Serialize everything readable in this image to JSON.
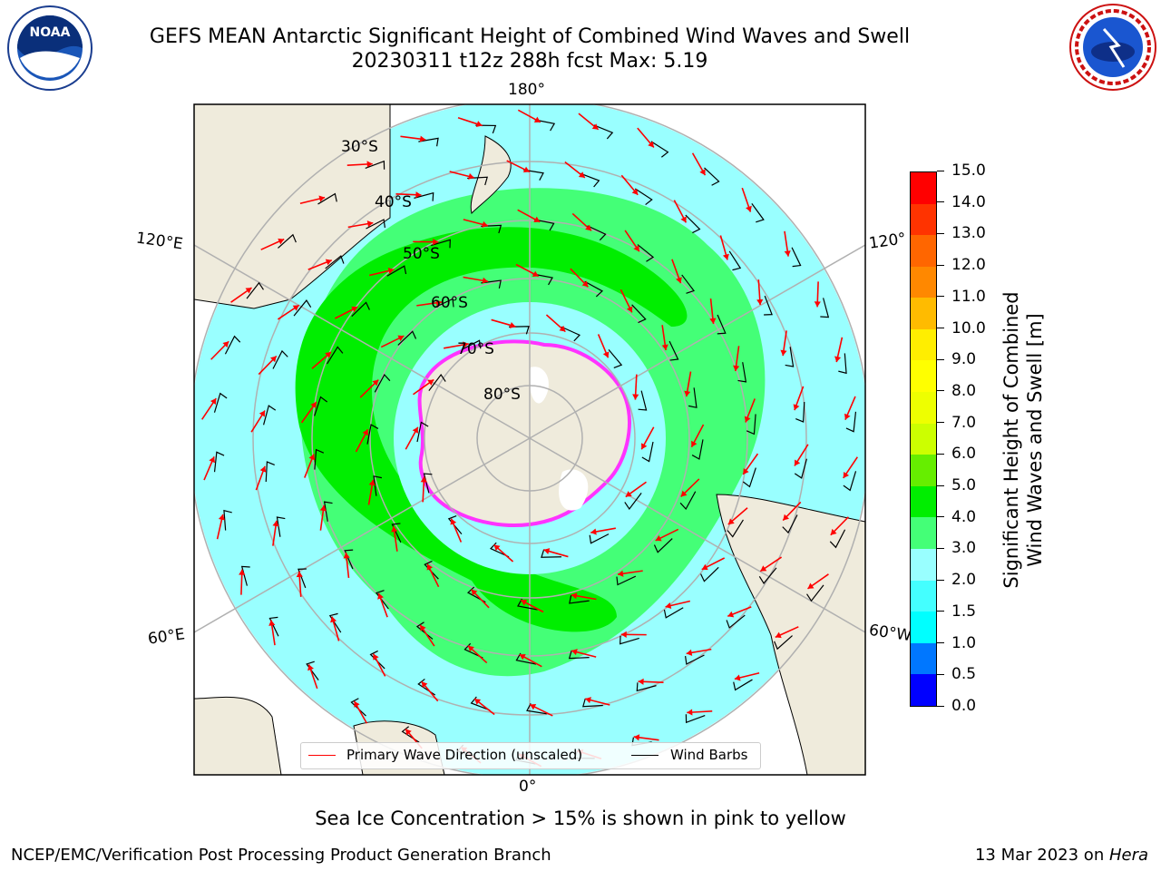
{
  "header": {
    "title_line1": "GEFS MEAN Antarctic Significant Height of Combined Wind Waves and Swell",
    "title_line2": "20230311 t12z 288h fcst   Max: 5.19"
  },
  "logos": {
    "left_text": "NOAA",
    "right_text": "NATIONAL WEATHER SERVICE"
  },
  "map": {
    "longitude_labels": {
      "top": "180°",
      "bottom": "0°",
      "upper_left": "120°E",
      "lower_left": "60°E",
      "upper_right": "120°",
      "lower_right": "60°W"
    },
    "latitude_labels": [
      "30°S",
      "40°S",
      "50°S",
      "60°S",
      "70°S",
      "80°S"
    ],
    "colors": {
      "land": "#efebdc",
      "ice_edge": "#ff33ff",
      "arrow": "#ff0000",
      "barb": "#000000",
      "grid": "#b0b0b0"
    }
  },
  "colorbar": {
    "label_line1": "Significant Height of Combined",
    "label_line2": "Wind Waves and Swell [m]",
    "ticks": [
      "0.0",
      "0.5",
      "1.0",
      "1.5",
      "2.0",
      "3.0",
      "4.0",
      "5.0",
      "6.0",
      "7.0",
      "8.0",
      "9.0",
      "10.0",
      "11.0",
      "12.0",
      "13.0",
      "14.0",
      "15.0"
    ],
    "colors": [
      "#0000ff",
      "#0077ff",
      "#00ffff",
      "#44ffff",
      "#99ffff",
      "#44ff77",
      "#00ee00",
      "#66ee00",
      "#ccff00",
      "#eeff00",
      "#ffff00",
      "#ffee00",
      "#ffbb00",
      "#ff8800",
      "#ff6600",
      "#ff3300",
      "#ff0000"
    ]
  },
  "legend": {
    "wave_label": "Primary Wave Direction (unscaled)",
    "barb_label": "Wind Barbs"
  },
  "note": "Sea Ice Concentration > 15% is shown in pink to yellow",
  "footer": {
    "left": "NCEP/EMC/Verification Post Processing Product Generation Branch",
    "right_date": "13 Mar 2023 on ",
    "right_host": "Hera"
  }
}
